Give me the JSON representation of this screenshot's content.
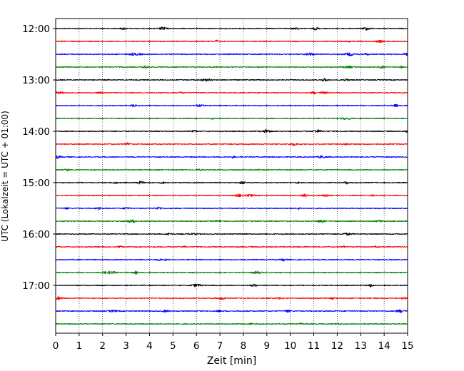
{
  "chart_data": {
    "type": "line",
    "title": "",
    "xlabel": "Zeit  [min]",
    "ylabel": "UTC (Lokalzeit = UTC + 01:00)",
    "xlim": [
      0,
      15
    ],
    "x_ticks": [
      "0",
      "1",
      "2",
      "3",
      "4",
      "5",
      "6",
      "7",
      "8",
      "9",
      "10",
      "11",
      "12",
      "13",
      "14",
      "15"
    ],
    "y_ticks": [
      "12:00",
      "13:00",
      "14:00",
      "15:00",
      "16:00",
      "17:00"
    ],
    "grid": "vertical dotted lines at each minute",
    "legend": "none",
    "trace_interval_minutes": 15,
    "trace_colors": [
      "#000000",
      "#ff0000",
      "#0000ff",
      "#008000"
    ],
    "series": [
      {
        "start": "12:00",
        "color": "#000000"
      },
      {
        "start": "12:15",
        "color": "#ff0000"
      },
      {
        "start": "12:30",
        "color": "#0000ff"
      },
      {
        "start": "12:45",
        "color": "#008000"
      },
      {
        "start": "13:00",
        "color": "#000000"
      },
      {
        "start": "13:15",
        "color": "#ff0000"
      },
      {
        "start": "13:30",
        "color": "#0000ff"
      },
      {
        "start": "13:45",
        "color": "#008000"
      },
      {
        "start": "14:00",
        "color": "#000000"
      },
      {
        "start": "14:15",
        "color": "#ff0000"
      },
      {
        "start": "14:30",
        "color": "#0000ff"
      },
      {
        "start": "14:45",
        "color": "#008000"
      },
      {
        "start": "15:00",
        "color": "#000000"
      },
      {
        "start": "15:15",
        "color": "#ff0000"
      },
      {
        "start": "15:30",
        "color": "#0000ff"
      },
      {
        "start": "15:45",
        "color": "#008000"
      },
      {
        "start": "16:00",
        "color": "#000000"
      },
      {
        "start": "16:15",
        "color": "#ff0000"
      },
      {
        "start": "16:30",
        "color": "#0000ff"
      },
      {
        "start": "16:45",
        "color": "#008000"
      },
      {
        "start": "17:00",
        "color": "#000000"
      },
      {
        "start": "17:15",
        "color": "#ff0000"
      },
      {
        "start": "17:30",
        "color": "#0000ff"
      },
      {
        "start": "17:45",
        "color": "#008000"
      }
    ]
  }
}
